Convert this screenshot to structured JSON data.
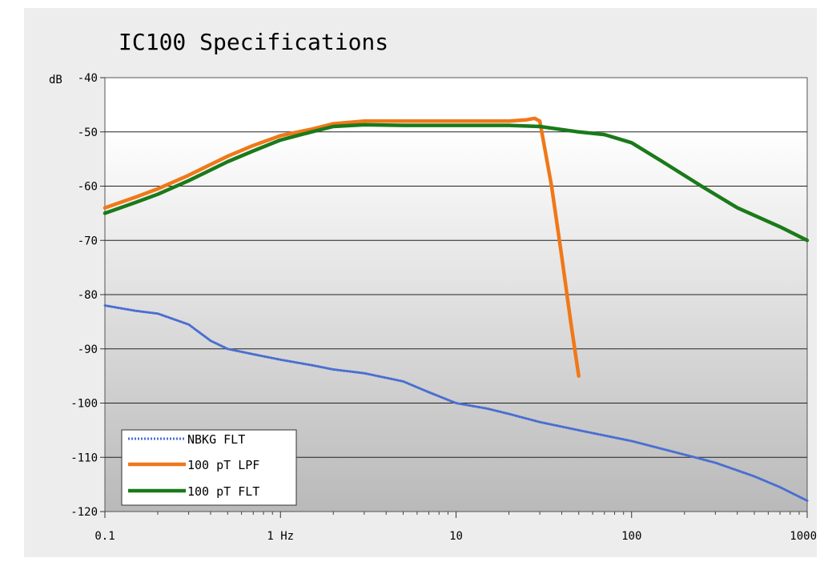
{
  "chart_data": {
    "type": "line",
    "title": "IC100 Specifications",
    "y_unit_label": "dB",
    "x_scale": "log",
    "xlim": [
      0.1,
      1000
    ],
    "ylim": [
      -120,
      -40
    ],
    "grid": "horizontal",
    "legend_position": "bottom-left",
    "x_ticks": [
      {
        "value": 0.1,
        "label": "0.1"
      },
      {
        "value": 1,
        "label": "1 Hz"
      },
      {
        "value": 10,
        "label": "10"
      },
      {
        "value": 100,
        "label": "100"
      },
      {
        "value": 1000,
        "label": "1000"
      }
    ],
    "y_ticks": [
      -40,
      -50,
      -60,
      -70,
      -80,
      -90,
      -100,
      -110,
      -120
    ],
    "series": [
      {
        "name": "NBKG FLT",
        "color": "#4a6fd0",
        "style": "dotted",
        "points": [
          [
            0.1,
            -82
          ],
          [
            0.15,
            -83
          ],
          [
            0.2,
            -83.5
          ],
          [
            0.3,
            -85.5
          ],
          [
            0.4,
            -88.5
          ],
          [
            0.5,
            -90
          ],
          [
            0.7,
            -91
          ],
          [
            1,
            -92
          ],
          [
            1.5,
            -93
          ],
          [
            2,
            -93.8
          ],
          [
            3,
            -94.5
          ],
          [
            5,
            -96
          ],
          [
            7,
            -98
          ],
          [
            10,
            -100
          ],
          [
            15,
            -101
          ],
          [
            20,
            -102
          ],
          [
            30,
            -103.5
          ],
          [
            50,
            -105
          ],
          [
            100,
            -107
          ],
          [
            200,
            -109.5
          ],
          [
            300,
            -111
          ],
          [
            500,
            -113.5
          ],
          [
            700,
            -115.5
          ],
          [
            1000,
            -118
          ]
        ]
      },
      {
        "name": "100 pT LPF",
        "color": "#f07818",
        "style": "solid",
        "points": [
          [
            0.1,
            -64
          ],
          [
            0.15,
            -62
          ],
          [
            0.2,
            -60.5
          ],
          [
            0.3,
            -58
          ],
          [
            0.5,
            -54.5
          ],
          [
            0.7,
            -52.5
          ],
          [
            1,
            -50.7
          ],
          [
            1.5,
            -49.5
          ],
          [
            2,
            -48.5
          ],
          [
            3,
            -48
          ],
          [
            5,
            -48
          ],
          [
            10,
            -48
          ],
          [
            20,
            -48
          ],
          [
            25,
            -47.8
          ],
          [
            28,
            -47.5
          ],
          [
            30,
            -48
          ],
          [
            35,
            -60
          ],
          [
            40,
            -73
          ],
          [
            45,
            -85
          ],
          [
            50,
            -95
          ]
        ]
      },
      {
        "name": "100 pT FLT",
        "color": "#1a7a1a",
        "style": "solid",
        "points": [
          [
            0.1,
            -65
          ],
          [
            0.15,
            -63
          ],
          [
            0.2,
            -61.5
          ],
          [
            0.3,
            -59
          ],
          [
            0.5,
            -55.5
          ],
          [
            0.7,
            -53.5
          ],
          [
            1,
            -51.5
          ],
          [
            1.5,
            -50
          ],
          [
            2,
            -49
          ],
          [
            3,
            -48.7
          ],
          [
            5,
            -48.8
          ],
          [
            10,
            -48.8
          ],
          [
            20,
            -48.8
          ],
          [
            30,
            -49
          ],
          [
            50,
            -50
          ],
          [
            70,
            -50.5
          ],
          [
            100,
            -52
          ],
          [
            150,
            -55.5
          ],
          [
            250,
            -60
          ],
          [
            400,
            -64
          ],
          [
            700,
            -67.5
          ],
          [
            1000,
            -70
          ]
        ]
      }
    ]
  }
}
